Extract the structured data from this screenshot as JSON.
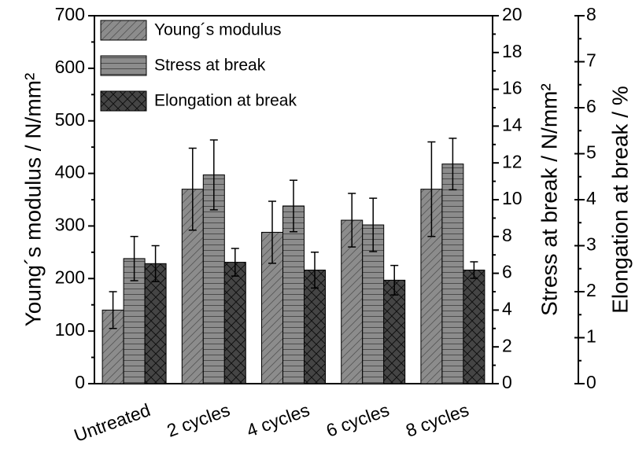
{
  "chart_data": {
    "type": "bar",
    "categories": [
      "Untreated",
      "2 cycles",
      "4 cycles",
      "6 cycles",
      "8 cycles"
    ],
    "series": [
      {
        "name": "Young´s modulus",
        "color": "#8c8c8c",
        "pattern": "diagonal",
        "axis": "y",
        "values": [
          140,
          370,
          288,
          311,
          370
        ],
        "errors": [
          35,
          78,
          59,
          51,
          90
        ]
      },
      {
        "name": "Stress at break",
        "color": "#8c8c8c",
        "pattern": "horizontal",
        "axis": "y2",
        "values": [
          6.8,
          11.35,
          9.66,
          8.63,
          11.94
        ],
        "errors": [
          1.2,
          1.9,
          1.4,
          1.45,
          1.4
        ]
      },
      {
        "name": "Elongation at break",
        "color": "#454545",
        "pattern": "crosshatch",
        "axis": "y3",
        "values": [
          2.61,
          2.64,
          2.47,
          2.25,
          2.47
        ],
        "errors": [
          0.39,
          0.3,
          0.39,
          0.32,
          0.18
        ]
      }
    ],
    "ylabel": "Young´s modulus / N/mm²",
    "y2label": "Stress at break / N/mm²",
    "y3label": "Elongation at break / %",
    "ylim": [
      0,
      700
    ],
    "yticks": [
      0,
      100,
      200,
      300,
      400,
      500,
      600,
      700
    ],
    "y2lim": [
      0,
      20
    ],
    "y2ticks": [
      0,
      2,
      4,
      6,
      8,
      10,
      12,
      14,
      16,
      18,
      20
    ],
    "y3lim": [
      0,
      8
    ],
    "y3ticks": [
      0,
      1,
      2,
      3,
      4,
      5,
      6,
      7,
      8
    ],
    "legend": "upper left"
  }
}
